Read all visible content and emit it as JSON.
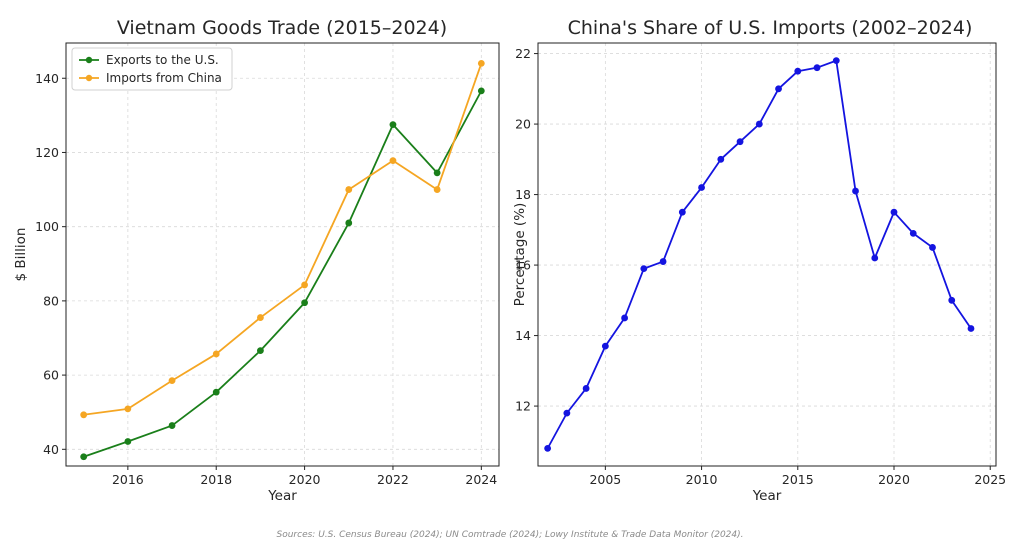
{
  "chart_data": [
    {
      "type": "line",
      "title": "Vietnam Goods Trade (2015–2024)",
      "xlabel": "Year",
      "ylabel": "$ Billion",
      "xlim": [
        2014.6,
        2024.4
      ],
      "ylim": [
        35.5,
        149.5
      ],
      "xticks": [
        2016,
        2018,
        2020,
        2022,
        2024
      ],
      "yticks": [
        40,
        60,
        80,
        100,
        120,
        140
      ],
      "grid": true,
      "legend": "top-left",
      "x": [
        2015,
        2016,
        2017,
        2018,
        2019,
        2020,
        2021,
        2022,
        2023,
        2024
      ],
      "series": [
        {
          "name": "Exports to the U.S.",
          "color": "#1a7f1a",
          "values": [
            38,
            42.1,
            46.4,
            55.4,
            66.6,
            79.5,
            101,
            127.5,
            114.5,
            136.6
          ]
        },
        {
          "name": "Imports from China",
          "color": "#f5a623",
          "values": [
            49.3,
            50.9,
            58.5,
            65.7,
            75.5,
            84.3,
            110,
            117.8,
            110,
            144
          ]
        }
      ]
    },
    {
      "type": "line",
      "title": "China's Share of U.S. Imports (2002–2024)",
      "xlabel": "Year",
      "ylabel": "Percentage (%)",
      "xlim": [
        2001.5,
        2025.3
      ],
      "ylim": [
        10.3,
        22.3
      ],
      "xticks": [
        2005,
        2010,
        2015,
        2020,
        2025
      ],
      "yticks": [
        12,
        14,
        16,
        18,
        20,
        22
      ],
      "grid": true,
      "x": [
        2002,
        2003,
        2004,
        2005,
        2006,
        2007,
        2008,
        2009,
        2010,
        2011,
        2012,
        2013,
        2014,
        2015,
        2016,
        2017,
        2018,
        2019,
        2020,
        2021,
        2022,
        2023,
        2024
      ],
      "series": [
        {
          "name": "",
          "color": "#1414e0",
          "values": [
            10.8,
            11.8,
            12.5,
            13.7,
            14.5,
            15.9,
            16.1,
            17.5,
            18.2,
            19.0,
            19.5,
            20.0,
            21.0,
            21.5,
            21.6,
            21.8,
            18.1,
            16.2,
            17.5,
            16.9,
            16.5,
            15.0,
            14.2
          ]
        }
      ]
    }
  ],
  "source_note": "Sources: U.S. Census Bureau (2024); UN Comtrade (2024); Lowy Institute & Trade Data Monitor (2024)."
}
